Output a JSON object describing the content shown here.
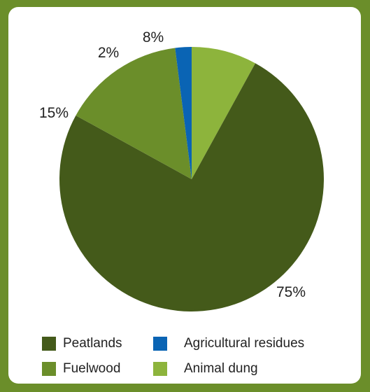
{
  "chart_data": {
    "type": "pie",
    "title": "",
    "slices": [
      {
        "name": "Animal dung",
        "value": 8,
        "label": "8%",
        "color": "#8db43c"
      },
      {
        "name": "Peatlands",
        "value": 75,
        "label": "75%",
        "color": "#445a1a"
      },
      {
        "name": "Fuelwood",
        "value": 15,
        "label": "15%",
        "color": "#6b8e2a"
      },
      {
        "name": "Agricultural residues",
        "value": 2,
        "label": "2%",
        "color": "#0a64b4"
      }
    ],
    "start_angle_deg": 0,
    "direction": "clockwise",
    "legend": {
      "placement": "bottom",
      "entries": [
        {
          "label": "Peatlands",
          "color": "#445a1a"
        },
        {
          "label": "Agricultural residues",
          "color": "#0a64b4"
        },
        {
          "label": "Fuelwood",
          "color": "#6b8e2a"
        },
        {
          "label": "Animal dung",
          "color": "#8db43c"
        }
      ]
    }
  },
  "colors": {
    "background": "#6b8e2a",
    "panel": "#ffffff"
  }
}
